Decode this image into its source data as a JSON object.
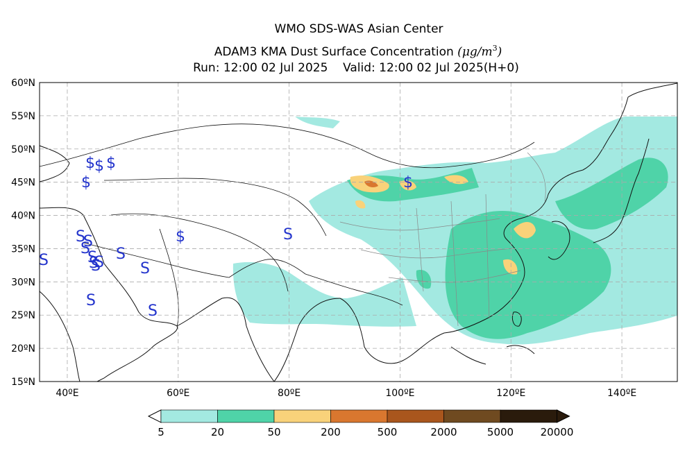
{
  "header": {
    "line1": "WMO SDS-WAS Asian Center",
    "line2_main": "ADAM3 KMA Dust Surface Concentration",
    "line2_unit_open": "(",
    "line2_unit_mu": "μ",
    "line2_unit_g": "g/m",
    "line2_unit_exp": "3",
    "line2_unit_close": ")",
    "run_label": "Run: 12:00 02 Jul 2025",
    "valid_label": "Valid: 12:00 02 Jul 2025(H+0)"
  },
  "map": {
    "lat_labels": [
      "60ºN",
      "55ºN",
      "50ºN",
      "45ºN",
      "40ºN",
      "35ºN",
      "30ºN",
      "25ºN",
      "20ºN",
      "15ºN"
    ],
    "lon_labels": [
      "40ºE",
      "60ºE",
      "80ºE",
      "100ºE",
      "120ºE",
      "140ºE"
    ],
    "lat_range": [
      15,
      60
    ],
    "lon_range": [
      35,
      150
    ],
    "station_symbol": "S",
    "dollar_symbol": "$",
    "symbol_color": "#2233cc",
    "grid": true
  },
  "colorbar": {
    "colors": [
      "#a3e9e1",
      "#4fd3a8",
      "#f9d27a",
      "#d9772f",
      "#a9561d",
      "#6f4a20",
      "#2a1b0c"
    ],
    "labels": [
      "5",
      "20",
      "50",
      "200",
      "500",
      "2000",
      "5000",
      "20000"
    ]
  }
}
